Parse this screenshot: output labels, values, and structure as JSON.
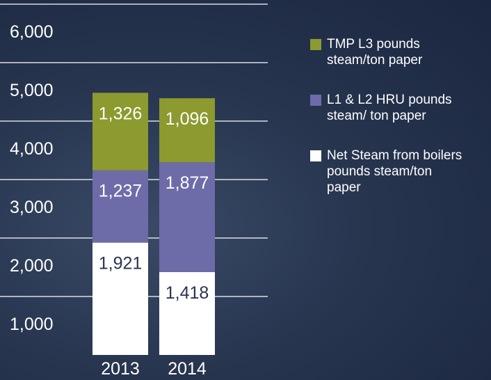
{
  "chart_data": {
    "type": "stacked-bar",
    "categories": [
      "2013",
      "2014"
    ],
    "series": [
      {
        "name": "TMP L3 pounds steam/ton paper",
        "color": "#8c9a2f",
        "values": [
          1326,
          1096
        ],
        "value_labels": [
          "1,326",
          "1,096"
        ]
      },
      {
        "name": "L1 & L2 HRU pounds steam/ ton paper",
        "color": "#6e6ba9",
        "values": [
          1237,
          1877
        ],
        "value_labels": [
          "1,237",
          "1,877"
        ]
      },
      {
        "name": "Net Steam from boilers pounds steam/ton paper",
        "color": "#ffffff",
        "values": [
          1921,
          1418
        ],
        "value_labels": [
          "1,921",
          "1,418"
        ]
      }
    ],
    "ylim": [
      0,
      6000
    ],
    "yticks": [
      {
        "value": 1000,
        "label": "1,000"
      },
      {
        "value": 2000,
        "label": "2,000"
      },
      {
        "value": 3000,
        "label": "3,000"
      },
      {
        "value": 4000,
        "label": "4,000"
      },
      {
        "value": 5000,
        "label": "5,000"
      },
      {
        "value": 6000,
        "label": "6,000"
      }
    ],
    "grid": true
  }
}
